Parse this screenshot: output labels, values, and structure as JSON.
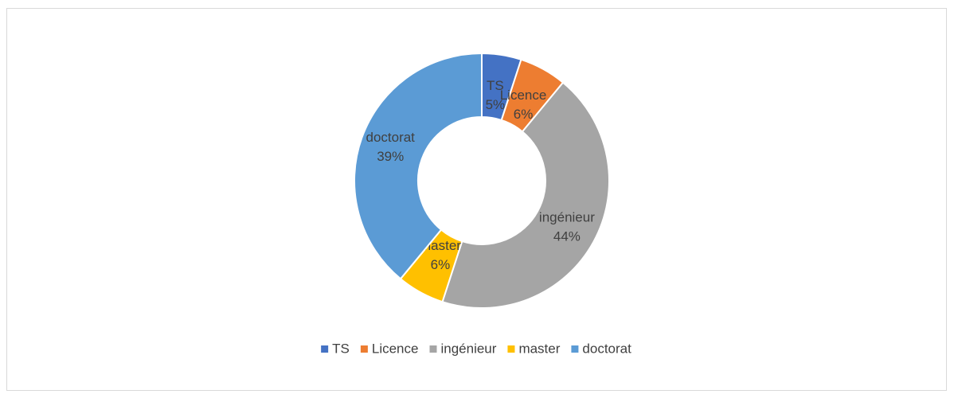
{
  "chart_data": {
    "type": "donut",
    "categories": [
      "TS",
      "Licence",
      "ingénieur",
      "master",
      "doctorat"
    ],
    "values": [
      5,
      6,
      44,
      6,
      39
    ],
    "value_labels": [
      "5%",
      "6%",
      "44%",
      "6%",
      "39%"
    ],
    "colors": [
      "#4472c4",
      "#ed7d31",
      "#a5a5a5",
      "#ffc000",
      "#5b9bd5"
    ],
    "legend": "bottom"
  }
}
